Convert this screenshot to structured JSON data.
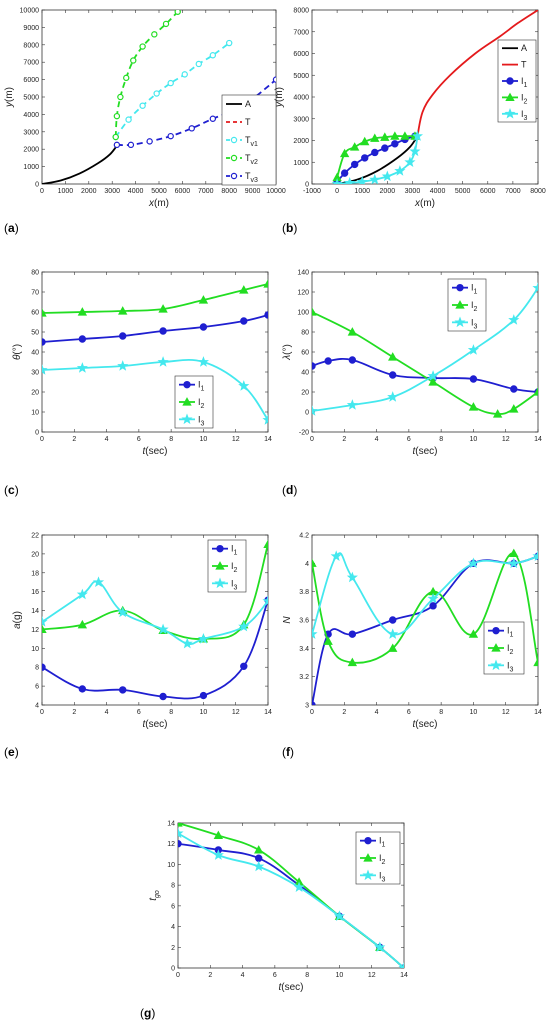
{
  "colors": {
    "black": "#000000",
    "red": "#e41a1c",
    "blue": "#1f1fd0",
    "green": "#22dd22",
    "cyan": "#44e8ee"
  },
  "chart_data": [
    {
      "id": "a",
      "panel_label": "(a)",
      "type": "line",
      "xlabel": "x(m)",
      "ylabel": "y(m)",
      "xlim": [
        0,
        10000
      ],
      "ylim": [
        0,
        10000
      ],
      "xticks": [
        0,
        1000,
        2000,
        3000,
        4000,
        5000,
        6000,
        7000,
        8000,
        9000,
        10000
      ],
      "yticks": [
        0,
        1000,
        2000,
        3000,
        4000,
        5000,
        6000,
        7000,
        8000,
        9000,
        10000
      ],
      "legend_position": "bottom-right",
      "series": [
        {
          "name": "A",
          "color": "black",
          "dash": "",
          "marker": "",
          "x": [
            0,
            800,
            1600,
            2400,
            2900,
            3200
          ],
          "y": [
            0,
            200,
            600,
            1200,
            1700,
            2200
          ]
        },
        {
          "name": "T",
          "color": "red",
          "dash": "6,4",
          "marker": "",
          "x": [],
          "y": []
        },
        {
          "name": "Tv1",
          "color": "cyan",
          "dash": "6,4",
          "marker": "circle-open",
          "x": [
            3150,
            3700,
            4300,
            4900,
            5500,
            6100,
            6700,
            7300,
            8000
          ],
          "y": [
            2700,
            3700,
            4500,
            5200,
            5800,
            6300,
            6900,
            7400,
            8100
          ]
        },
        {
          "name": "Tv2",
          "color": "green",
          "dash": "6,4",
          "marker": "circle-open",
          "x": [
            3150,
            3200,
            3350,
            3600,
            3900,
            4300,
            4800,
            5300,
            5800
          ],
          "y": [
            2700,
            3900,
            5000,
            6100,
            7100,
            7900,
            8600,
            9200,
            9900
          ]
        },
        {
          "name": "Tv3",
          "color": "blue",
          "dash": "6,4",
          "marker": "circle-open",
          "x": [
            3200,
            3800,
            4600,
            5500,
            6400,
            7300,
            8100,
            9000,
            10000
          ],
          "y": [
            2250,
            2250,
            2450,
            2750,
            3200,
            3750,
            4200,
            4900,
            6000
          ]
        }
      ]
    },
    {
      "id": "b",
      "panel_label": "(b)",
      "type": "line",
      "xlabel": "x(m)",
      "ylabel": "y(m)",
      "xlim": [
        -1000,
        8000
      ],
      "ylim": [
        0,
        8000
      ],
      "xticks": [
        -1000,
        0,
        1000,
        2000,
        3000,
        4000,
        5000,
        6000,
        7000,
        8000
      ],
      "yticks": [
        0,
        1000,
        2000,
        3000,
        4000,
        5000,
        6000,
        7000,
        8000
      ],
      "legend_position": "top-right",
      "series": [
        {
          "name": "A",
          "color": "black",
          "dash": "",
          "marker": "",
          "x": [
            0,
            800,
            1600,
            2400,
            2900,
            3200
          ],
          "y": [
            0,
            200,
            600,
            1200,
            1700,
            2200
          ]
        },
        {
          "name": "T",
          "color": "red",
          "dash": "",
          "marker": "",
          "x": [
            3200,
            3400,
            3800,
            4500,
            5500,
            6500,
            7200,
            8000
          ],
          "y": [
            2200,
            3300,
            4100,
            5000,
            6000,
            6800,
            7400,
            8000
          ]
        },
        {
          "name": "I1",
          "color": "blue",
          "dash": "",
          "marker": "circle",
          "x": [
            0,
            300,
            700,
            1100,
            1500,
            1900,
            2300,
            2700,
            3100
          ],
          "y": [
            100,
            500,
            900,
            1200,
            1450,
            1650,
            1850,
            2050,
            2200
          ]
        },
        {
          "name": "I2",
          "color": "green",
          "dash": "",
          "marker": "triangle",
          "x": [
            0,
            300,
            700,
            1100,
            1500,
            1900,
            2300,
            2700,
            3100
          ],
          "y": [
            300,
            1400,
            1700,
            1950,
            2100,
            2150,
            2200,
            2200,
            2200
          ]
        },
        {
          "name": "I3",
          "color": "cyan",
          "dash": "",
          "marker": "star",
          "x": [
            0,
            500,
            1000,
            1500,
            2000,
            2500,
            2900,
            3100,
            3200
          ],
          "y": [
            0,
            50,
            100,
            200,
            350,
            600,
            1000,
            1500,
            2200
          ]
        }
      ]
    },
    {
      "id": "c",
      "panel_label": "(c)",
      "type": "line",
      "xlabel": "t(sec)",
      "ylabel": "θ(°)",
      "xlim": [
        0,
        14
      ],
      "ylim": [
        0,
        80
      ],
      "xticks": [
        0,
        2,
        4,
        6,
        8,
        10,
        12,
        14
      ],
      "yticks": [
        0,
        10,
        20,
        30,
        40,
        50,
        60,
        70,
        80
      ],
      "legend_position": "bottom-right",
      "series": [
        {
          "name": "I1",
          "color": "blue",
          "dash": "",
          "marker": "circle",
          "x": [
            0,
            2.5,
            5,
            7.5,
            10,
            12.5,
            14
          ],
          "y": [
            45,
            46.5,
            48,
            50.5,
            52.5,
            55.5,
            58.5
          ]
        },
        {
          "name": "I2",
          "color": "green",
          "dash": "",
          "marker": "triangle",
          "x": [
            0,
            2.5,
            5,
            7.5,
            10,
            12.5,
            14
          ],
          "y": [
            59.5,
            60,
            60.5,
            61.5,
            66,
            71,
            74
          ]
        },
        {
          "name": "I3",
          "color": "cyan",
          "dash": "",
          "marker": "star",
          "x": [
            0,
            2.5,
            5,
            7.5,
            10,
            12.5,
            14
          ],
          "y": [
            31,
            32,
            33,
            35,
            35,
            23,
            6
          ]
        }
      ]
    },
    {
      "id": "d",
      "panel_label": "(d)",
      "type": "line",
      "xlabel": "t(sec)",
      "ylabel": "λ(°)",
      "xlim": [
        0,
        14
      ],
      "ylim": [
        -20,
        140
      ],
      "xticks": [
        0,
        2,
        4,
        6,
        8,
        10,
        12,
        14
      ],
      "yticks": [
        -20,
        0,
        20,
        40,
        60,
        80,
        100,
        120,
        140
      ],
      "legend_position": "top-center",
      "series": [
        {
          "name": "I1",
          "color": "blue",
          "dash": "",
          "marker": "circle",
          "x": [
            0,
            1,
            2.5,
            5,
            7.5,
            10,
            12.5,
            14
          ],
          "y": [
            46,
            51,
            52,
            37,
            34,
            33,
            23,
            20
          ]
        },
        {
          "name": "I2",
          "color": "green",
          "dash": "",
          "marker": "triangle",
          "x": [
            0,
            2.5,
            5,
            7.5,
            10,
            11.5,
            12.5,
            14
          ],
          "y": [
            100,
            80,
            55,
            30,
            5,
            -2,
            3,
            20
          ]
        },
        {
          "name": "I3",
          "color": "cyan",
          "dash": "",
          "marker": "star",
          "x": [
            0,
            2.5,
            5,
            7.5,
            10,
            12.5,
            14
          ],
          "y": [
            1,
            7,
            15,
            36,
            62,
            92,
            124
          ]
        }
      ]
    },
    {
      "id": "e",
      "panel_label": "(e)",
      "type": "line",
      "xlabel": "t(sec)",
      "ylabel": "a(g)",
      "xlim": [
        0,
        14
      ],
      "ylim": [
        4,
        22
      ],
      "xticks": [
        0,
        2,
        4,
        6,
        8,
        10,
        12,
        14
      ],
      "yticks": [
        4,
        6,
        8,
        10,
        12,
        14,
        16,
        18,
        20,
        22
      ],
      "legend_position": "top-right",
      "series": [
        {
          "name": "I1",
          "color": "blue",
          "dash": "",
          "marker": "circle",
          "x": [
            0,
            2.5,
            5,
            7.5,
            10,
            12.5,
            14
          ],
          "y": [
            8,
            5.7,
            5.6,
            4.9,
            5,
            8.1,
            15.1
          ]
        },
        {
          "name": "I2",
          "color": "green",
          "dash": "",
          "marker": "triangle",
          "x": [
            0,
            2.5,
            5,
            7.5,
            10,
            12.5,
            14
          ],
          "y": [
            12,
            12.5,
            14,
            11.9,
            11,
            12.5,
            21
          ]
        },
        {
          "name": "I3",
          "color": "cyan",
          "dash": "",
          "marker": "star",
          "x": [
            0,
            2.5,
            3.5,
            5,
            7.5,
            9,
            10,
            12.5,
            14
          ],
          "y": [
            12.8,
            15.7,
            17,
            13.8,
            12,
            10.5,
            11,
            12.3,
            15
          ]
        }
      ]
    },
    {
      "id": "f",
      "panel_label": "(f)",
      "type": "line",
      "xlabel": "t(sec)",
      "ylabel": "N",
      "xlim": [
        0,
        14
      ],
      "ylim": [
        3,
        4.2
      ],
      "xticks": [
        0,
        2,
        4,
        6,
        8,
        10,
        12,
        14
      ],
      "yticks": [
        3,
        3.2,
        3.4,
        3.6,
        3.8,
        4,
        4.2
      ],
      "legend_position": "bottom-right",
      "series": [
        {
          "name": "I1",
          "color": "blue",
          "dash": "",
          "marker": "circle",
          "x": [
            0,
            1,
            2.5,
            5,
            7.5,
            10,
            12.5,
            14
          ],
          "y": [
            3,
            3.5,
            3.5,
            3.6,
            3.7,
            4,
            4,
            4.05
          ]
        },
        {
          "name": "I2",
          "color": "green",
          "dash": "",
          "marker": "triangle",
          "x": [
            0,
            1,
            2.5,
            5,
            7.5,
            10,
            12.5,
            14
          ],
          "y": [
            4,
            3.45,
            3.3,
            3.4,
            3.8,
            3.5,
            4.07,
            3.3
          ]
        },
        {
          "name": "I3",
          "color": "cyan",
          "dash": "",
          "marker": "star",
          "x": [
            0,
            1.5,
            2.5,
            5,
            7.5,
            10,
            12.5,
            14
          ],
          "y": [
            3.5,
            4.05,
            3.9,
            3.5,
            3.75,
            4,
            4,
            4.05
          ]
        }
      ]
    },
    {
      "id": "g",
      "panel_label": "(g)",
      "type": "line",
      "xlabel": "t(sec)",
      "ylabel": "tgo",
      "xlim": [
        0,
        14
      ],
      "ylim": [
        0,
        14
      ],
      "xticks": [
        0,
        2,
        4,
        6,
        8,
        10,
        12,
        14
      ],
      "yticks": [
        0,
        2,
        4,
        6,
        8,
        10,
        12,
        14
      ],
      "legend_position": "top-right",
      "series": [
        {
          "name": "I1",
          "color": "blue",
          "dash": "",
          "marker": "circle",
          "x": [
            0,
            2.5,
            5,
            7.5,
            10,
            12.5,
            14
          ],
          "y": [
            12,
            11.4,
            10.6,
            8,
            5,
            2,
            0
          ]
        },
        {
          "name": "I2",
          "color": "green",
          "dash": "",
          "marker": "triangle",
          "x": [
            0,
            2.5,
            5,
            7.5,
            10,
            12.5,
            14
          ],
          "y": [
            14,
            12.8,
            11.4,
            8.3,
            5,
            2,
            0
          ]
        },
        {
          "name": "I3",
          "color": "cyan",
          "dash": "",
          "marker": "star",
          "x": [
            0,
            2.5,
            5,
            7.5,
            10,
            12.5,
            14
          ],
          "y": [
            13,
            10.9,
            9.8,
            7.8,
            5,
            2,
            0
          ]
        }
      ]
    }
  ]
}
